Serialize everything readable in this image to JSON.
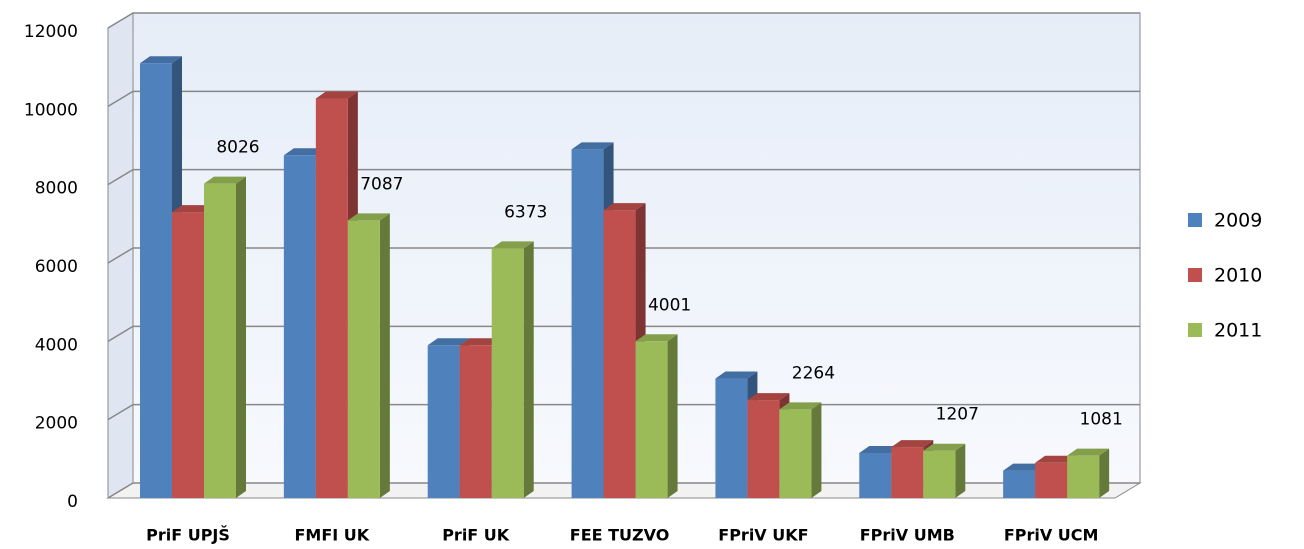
{
  "chart_data": {
    "type": "bar3d",
    "categories": [
      "PriF UPJŠ",
      "FMFI  UK",
      "PriF  UK",
      "FEE TUZVO",
      "FPriV  UKF",
      "FPriV  UMB",
      "FPriV UCM"
    ],
    "series": [
      {
        "name": "2009",
        "color": "#4f81bd",
        "values": [
          11100,
          8750,
          3900,
          8900,
          3050,
          1150,
          700
        ],
        "show_labels": false
      },
      {
        "name": "2010",
        "color": "#c0504d",
        "values": [
          7300,
          10200,
          3900,
          7350,
          2500,
          1300,
          900
        ],
        "show_labels": false
      },
      {
        "name": "2011",
        "color": "#9bbb59",
        "values": [
          8026,
          7087,
          6373,
          4001,
          2264,
          1207,
          1081
        ],
        "show_labels": true
      }
    ],
    "ylim": [
      0,
      12000
    ],
    "yticks": [
      0,
      2000,
      4000,
      6000,
      8000,
      10000,
      12000
    ],
    "grid": true,
    "legend": "right"
  }
}
